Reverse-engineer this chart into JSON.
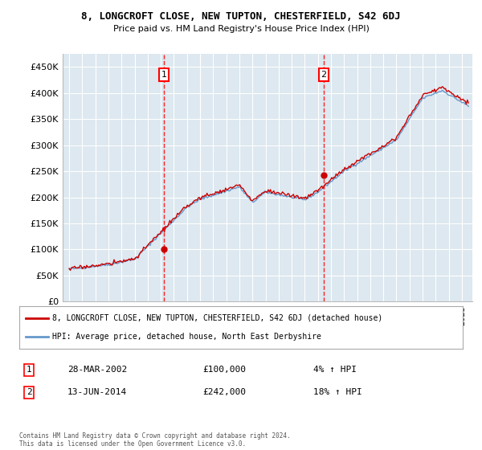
{
  "title": "8, LONGCROFT CLOSE, NEW TUPTON, CHESTERFIELD, S42 6DJ",
  "subtitle": "Price paid vs. HM Land Registry's House Price Index (HPI)",
  "hpi_label": "HPI: Average price, detached house, North East Derbyshire",
  "price_label": "8, LONGCROFT CLOSE, NEW TUPTON, CHESTERFIELD, S42 6DJ (detached house)",
  "sale1_date": "28-MAR-2002",
  "sale1_price": 100000,
  "sale1_price_str": "£100,000",
  "sale1_hpi": "4% ↑ HPI",
  "sale2_date": "13-JUN-2014",
  "sale2_price": 242000,
  "sale2_price_str": "£242,000",
  "sale2_hpi": "18% ↑ HPI",
  "footer": "Contains HM Land Registry data © Crown copyright and database right 2024.\nThis data is licensed under the Open Government Licence v3.0.",
  "price_color": "#cc0000",
  "hpi_color": "#6699cc",
  "background_color": "#dde8f0",
  "ylim": [
    0,
    475000
  ],
  "yticks": [
    0,
    50000,
    100000,
    150000,
    200000,
    250000,
    300000,
    350000,
    400000,
    450000
  ],
  "sale1_x": 2002.23,
  "sale2_x": 2014.45
}
